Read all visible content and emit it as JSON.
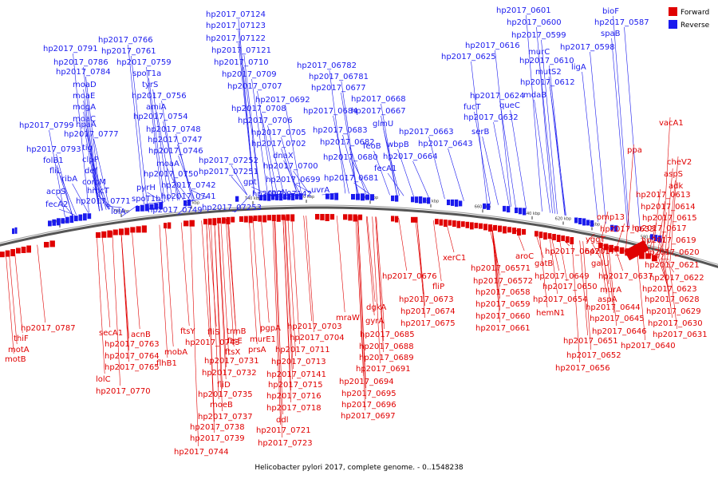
{
  "caption": "Helicobacter pylori 2017, complete genome. - 0..1548238",
  "legend": {
    "forward_label": "Forward",
    "reverse_label": "Reverse",
    "forward_color": "#e00000",
    "reverse_color": "#1a1aee"
  },
  "scale_ticks": [
    "580 kbp",
    "600 kbp",
    "620 kbp",
    "640 kbp",
    "660 kbp",
    "680 kbp",
    "700 kbp",
    "720 kbp",
    "740 kbp",
    "760 kbp",
    "780 kbp",
    "800 kbp"
  ],
  "reverse_labels": [
    "hp2017_07124",
    "hp2017_07123",
    "hp2017_07122",
    "hp2017_07121",
    "hp2017_0710",
    "hp2017_0709",
    "hp2017_0707",
    "hp2017_0708",
    "hp2017_0706",
    "hp2017_0705",
    "hp2017_0702",
    "dnaX",
    "hp2017_0700",
    "hp2017_0699",
    "rpoN",
    "uvrA",
    "hp2017_07142",
    "gpt",
    "hp2017_07251",
    "hp2017_07252",
    "hp2017_07253",
    "hp2017_0766",
    "hp2017_0761",
    "hp2017_0759",
    "spoT1a",
    "tyrS",
    "hp2017_0756",
    "amiA",
    "hp2017_0754",
    "hp2017_0748",
    "hp2017_0747",
    "hp2017_0746",
    "moaA",
    "hp2017_0750",
    "hp2017_0742",
    "hp2017_0741",
    "hp2017_0749",
    "pyrH",
    "spoT1b",
    "lolA",
    "hp2017_0791",
    "hp2017_0786",
    "hp2017_0784",
    "moaD",
    "moaE",
    "mogA",
    "moaC",
    "hpaA",
    "hp2017_0799",
    "hp2017_0777",
    "hp2017_0793",
    "tig",
    "folB1",
    "clpP",
    "fliL",
    "def",
    "comM",
    "ribA",
    "hmcT",
    "acpS",
    "fecA2",
    "hp2017_0771",
    "hp2017_06782",
    "hp2017_06781",
    "hp2017_0677",
    "hp2017_0692",
    "hp2017_0668",
    "hp2017_0684",
    "hp2017_0667",
    "glmU",
    "hp2017_0683",
    "hp2017_0663",
    "hp2017_0682",
    "feoB",
    "wbpB",
    "hp2017_0680",
    "hp2017_0664",
    "fecA1",
    "hp2017_0681",
    "hp2017_0601",
    "bioF",
    "hp2017_0600",
    "hp2017_0587",
    "hp2017_0599",
    "spaB",
    "hp2017_0616",
    "murC",
    "hp2017_0598",
    "hp2017_0625",
    "hp2017_0610",
    "mutS2",
    "ligA",
    "hp2017_0612",
    "hp2017_0624",
    "mdaB",
    "fucT",
    "queC",
    "hp2017_0632",
    "serB",
    "hp2017_0643"
  ],
  "forward_labels": [
    "vacA1",
    "ppa",
    "cheV2",
    "aspS",
    "adk",
    "hp2017_0613",
    "hp2017_0614",
    "hp2017_0615",
    "omp13",
    "hp2017_0617",
    "yggT",
    "hp2017_0633",
    "hp2017_0619",
    "hp2017_0635",
    "hp2017_0620",
    "galU",
    "hp2017_0621",
    "hp2017_0637",
    "hp2017_0622",
    "murA",
    "hp2017_0623",
    "aspA",
    "hp2017_0628",
    "hp2017_0644",
    "hp2017_0629",
    "hp2017_0645",
    "hp2017_0630",
    "hp2017_0646",
    "hp2017_0631",
    "hp2017_0640",
    "xerC1",
    "hp2017_0647",
    "aroC",
    "hp2017_06571",
    "gatB",
    "hp2017_0649",
    "hp2017_06572",
    "hp2017_0650",
    "hp2017_0658",
    "hp2017_0654",
    "hp2017_0659",
    "hemN1",
    "hp2017_0660",
    "hp2017_0661",
    "hp2017_0651",
    "hp2017_0652",
    "hp2017_0656",
    "hp2017_0676",
    "fliP",
    "hp2017_0673",
    "hp2017_0674",
    "hp2017_0675",
    "dgkA",
    "mraW",
    "gyrA",
    "hp2017_0685",
    "hp2017_0688",
    "hp2017_0689",
    "hp2017_0691",
    "hp2017_0694",
    "hp2017_0695",
    "hp2017_0696",
    "hp2017_0697",
    "hp2017_0703",
    "hp2017_0704",
    "pgpA",
    "murE1",
    "hp2017_0711",
    "prsA",
    "hp2017_0713",
    "hp2017_07141",
    "hp2017_0715",
    "hp2017_0716",
    "hp2017_0718",
    "ddl",
    "hp2017_0721",
    "hp2017_0723",
    "trmB",
    "fliS",
    "ftsE",
    "ftsX",
    "ftsY",
    "hp2017_0743",
    "hp2017_0731",
    "hp2017_0732",
    "fliD",
    "hp2017_0735",
    "moeB",
    "hp2017_0737",
    "hp2017_0738",
    "hp2017_0739",
    "hp2017_0744",
    "secA1",
    "acnB",
    "hp2017_0763",
    "hp2017_0764",
    "hp2017_0765",
    "lolC",
    "hp2017_0770",
    "mobA",
    "flhB1",
    "thiF",
    "hp2017_0787",
    "motA",
    "motB"
  ]
}
